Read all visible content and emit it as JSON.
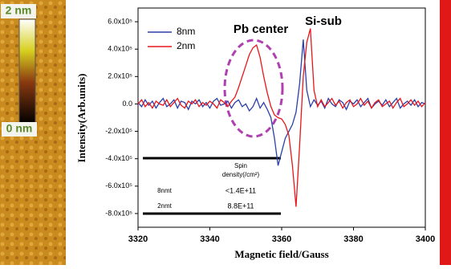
{
  "colorbar": {
    "top_label": "2 nm",
    "bottom_label": "0 nm"
  },
  "chart_data": {
    "type": "line",
    "ylabel": "Intensity(Arb.units)",
    "xlabel": "Magnetic field/Gauss",
    "annotations": [
      "Pb center",
      "Si-sub"
    ],
    "inset_table": {
      "header": [
        "Spin",
        "density(/cm²)"
      ],
      "rows": [
        [
          "8nmt",
          "<1.4E+11"
        ],
        [
          "2nmt",
          "8.8E+11"
        ]
      ]
    },
    "xlim": [
      3320,
      3400
    ],
    "xticks": [
      3320,
      3340,
      3360,
      3380,
      3400
    ],
    "ylim": [
      -900000,
      700000
    ],
    "yticks": [
      {
        "value": 600000,
        "label": "6.0x10⁵"
      },
      {
        "value": 400000,
        "label": "4.0x10⁵"
      },
      {
        "value": 200000,
        "label": "2.0x10⁵"
      },
      {
        "value": 0,
        "label": "0.0"
      },
      {
        "value": -200000,
        "label": "-2.0x10⁵"
      },
      {
        "value": -400000,
        "label": "-4.0x10⁵"
      },
      {
        "value": -600000,
        "label": "-6.0x10⁵"
      },
      {
        "value": -800000,
        "label": "-8.0x10⁵"
      }
    ],
    "legend": "upper left",
    "x": [
      3320,
      3321,
      3322,
      3323,
      3324,
      3325,
      3326,
      3327,
      3328,
      3329,
      3330,
      3331,
      3332,
      3333,
      3334,
      3335,
      3336,
      3337,
      3338,
      3339,
      3340,
      3341,
      3342,
      3343,
      3344,
      3345,
      3346,
      3347,
      3348,
      3349,
      3350,
      3351,
      3352,
      3353,
      3354,
      3355,
      3356,
      3357,
      3358,
      3359,
      3360,
      3361,
      3362,
      3363,
      3364,
      3365,
      3366,
      3367,
      3368,
      3369,
      3370,
      3371,
      3372,
      3373,
      3374,
      3375,
      3376,
      3377,
      3378,
      3379,
      3380,
      3381,
      3382,
      3383,
      3384,
      3385,
      3386,
      3387,
      3388,
      3389,
      3390,
      3391,
      3392,
      3393,
      3394,
      3395,
      3396,
      3397,
      3398,
      3399,
      3400
    ],
    "series": [
      {
        "name": "8nm",
        "color": "#2a3fa8",
        "values": [
          10000,
          -20000,
          30000,
          -10000,
          20000,
          -30000,
          10000,
          40000,
          -20000,
          0,
          30000,
          -30000,
          20000,
          10000,
          -40000,
          20000,
          0,
          30000,
          -20000,
          10000,
          -30000,
          20000,
          40000,
          -10000,
          0,
          20000,
          -30000,
          10000,
          30000,
          -20000,
          0,
          -50000,
          -20000,
          40000,
          -30000,
          10000,
          -40000,
          -100000,
          -250000,
          -450000,
          -350000,
          -250000,
          -200000,
          -150000,
          -60000,
          150000,
          470000,
          100000,
          -20000,
          30000,
          -10000,
          20000,
          -30000,
          40000,
          0,
          -20000,
          30000,
          10000,
          -40000,
          20000,
          0,
          30000,
          -20000,
          10000,
          40000,
          -30000,
          0,
          20000,
          -10000,
          30000,
          -20000,
          10000,
          40000,
          -30000,
          0,
          20000,
          -10000,
          30000,
          -20000,
          10000,
          0
        ]
      },
      {
        "name": "2nm",
        "color": "#e8161b",
        "values": [
          0,
          30000,
          -20000,
          10000,
          -30000,
          20000,
          0,
          -10000,
          30000,
          -20000,
          10000,
          40000,
          -10000,
          -30000,
          20000,
          0,
          30000,
          -20000,
          10000,
          -10000,
          20000,
          0,
          -30000,
          30000,
          10000,
          -20000,
          20000,
          50000,
          120000,
          200000,
          280000,
          360000,
          410000,
          430000,
          340000,
          200000,
          80000,
          -20000,
          -80000,
          -100000,
          -110000,
          -150000,
          -230000,
          -450000,
          -750000,
          -300000,
          200000,
          450000,
          550000,
          100000,
          -20000,
          30000,
          -20000,
          10000,
          40000,
          -10000,
          20000,
          -30000,
          10000,
          30000,
          -20000,
          0,
          40000,
          -10000,
          20000,
          -30000,
          10000,
          30000,
          -20000,
          0,
          20000,
          -30000,
          10000,
          40000,
          -20000,
          0,
          30000,
          -10000,
          20000,
          -20000,
          10000
        ]
      }
    ]
  }
}
